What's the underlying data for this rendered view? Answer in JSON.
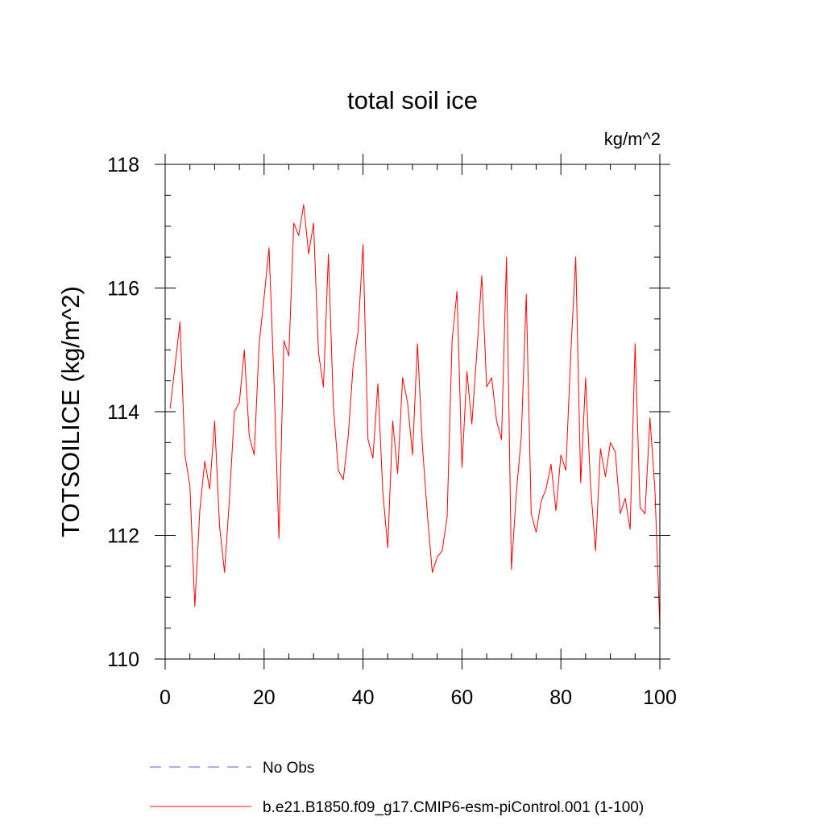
{
  "chart_data": {
    "type": "line",
    "title": "total soil ice",
    "units_label": "kg/m^2",
    "ylabel": "TOTSOILICE  (kg/m^2)",
    "xlabel": "",
    "xlim": [
      0,
      100
    ],
    "ylim": [
      110,
      118
    ],
    "x_ticks": [
      0,
      20,
      40,
      60,
      80,
      100
    ],
    "y_ticks": [
      110,
      112,
      114,
      116,
      118
    ],
    "x_tick_labels": [
      "0",
      "20",
      "40",
      "60",
      "80",
      "100"
    ],
    "y_tick_labels": [
      "110",
      "112",
      "114",
      "116",
      "118"
    ],
    "x_minor_step": 5,
    "y_minor_step": 0.5,
    "grid": false,
    "legend_position": "bottom",
    "colors": {
      "series": "#ff0000",
      "obs": "#6a5acd"
    },
    "series": [
      {
        "name": "b.e21.B1850.f09_g17.CMIP6-esm-piControl.001 (1-100)",
        "line_style": "solid",
        "x": [
          1,
          2,
          3,
          4,
          5,
          6,
          7,
          8,
          9,
          10,
          11,
          12,
          13,
          14,
          15,
          16,
          17,
          18,
          19,
          20,
          21,
          22,
          23,
          24,
          25,
          26,
          27,
          28,
          29,
          30,
          31,
          32,
          33,
          34,
          35,
          36,
          37,
          38,
          39,
          40,
          41,
          42,
          43,
          44,
          45,
          46,
          47,
          48,
          49,
          50,
          51,
          52,
          53,
          54,
          55,
          56,
          57,
          58,
          59,
          60,
          61,
          62,
          63,
          64,
          65,
          66,
          67,
          68,
          69,
          70,
          71,
          72,
          73,
          74,
          75,
          76,
          77,
          78,
          79,
          80,
          81,
          82,
          83,
          84,
          85,
          86,
          87,
          88,
          89,
          90,
          91,
          92,
          93,
          94,
          95,
          96,
          97,
          98,
          99,
          100
        ],
        "values": [
          114.05,
          114.75,
          115.45,
          113.3,
          112.8,
          110.85,
          112.4,
          113.2,
          112.75,
          113.85,
          112.15,
          111.4,
          112.6,
          114.0,
          114.15,
          115.0,
          113.6,
          113.3,
          115.1,
          115.85,
          116.65,
          114.5,
          111.95,
          115.15,
          114.9,
          117.05,
          116.85,
          117.35,
          116.55,
          117.05,
          114.95,
          114.4,
          116.55,
          114.1,
          113.05,
          112.9,
          113.6,
          114.75,
          115.3,
          116.7,
          113.55,
          113.25,
          114.45,
          112.7,
          111.8,
          113.85,
          113.0,
          114.55,
          114.15,
          113.3,
          115.1,
          113.45,
          112.35,
          111.4,
          111.65,
          111.75,
          112.3,
          115.15,
          115.95,
          113.1,
          114.65,
          113.8,
          114.95,
          116.2,
          114.4,
          114.55,
          113.85,
          113.55,
          116.5,
          111.45,
          112.7,
          113.6,
          115.9,
          112.35,
          112.05,
          112.55,
          112.75,
          113.15,
          112.4,
          113.3,
          113.05,
          114.95,
          116.5,
          112.85,
          114.55,
          112.8,
          111.75,
          113.4,
          112.95,
          113.5,
          113.35,
          112.35,
          112.6,
          112.1,
          115.1,
          112.45,
          112.35,
          113.9,
          112.75,
          110.5
        ]
      },
      {
        "name": "No Obs",
        "line_style": "dashed",
        "x": [],
        "values": []
      }
    ]
  }
}
